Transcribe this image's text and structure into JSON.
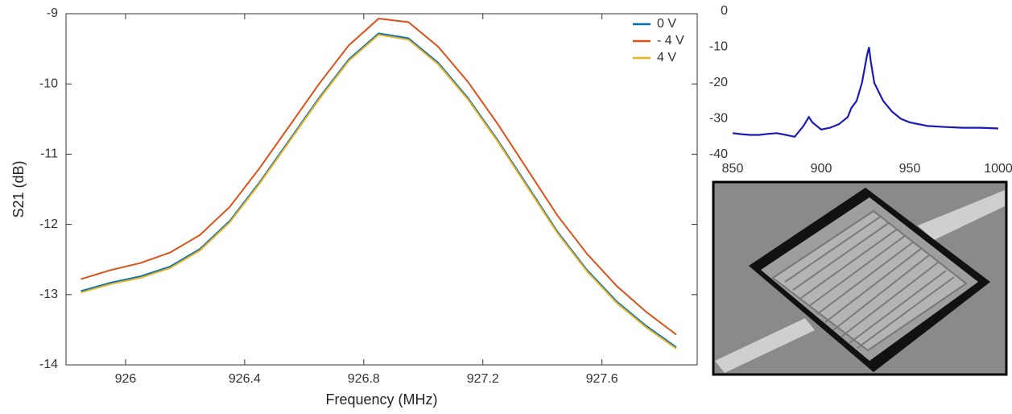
{
  "chart_data": [
    {
      "type": "line",
      "xlabel": "Frequency (MHz)",
      "ylabel": "S21 (dB)",
      "x": [
        925.85,
        925.95,
        926.05,
        926.15,
        926.25,
        926.35,
        926.45,
        926.55,
        926.65,
        926.75,
        926.85,
        926.95,
        927.05,
        927.15,
        927.25,
        927.35,
        927.45,
        927.55,
        927.65,
        927.75,
        927.85
      ],
      "series": [
        {
          "name": "0 V",
          "color": "#0072bd",
          "values": [
            -12.95,
            -12.83,
            -12.74,
            -12.6,
            -12.35,
            -11.95,
            -11.4,
            -10.8,
            -10.2,
            -9.65,
            -9.28,
            -9.35,
            -9.7,
            -10.2,
            -10.8,
            -11.45,
            -12.1,
            -12.65,
            -13.1,
            -13.45,
            -13.75
          ]
        },
        {
          "name": "- 4 V",
          "color": "#d95319",
          "values": [
            -12.78,
            -12.65,
            -12.55,
            -12.4,
            -12.15,
            -11.75,
            -11.2,
            -10.6,
            -10.0,
            -9.45,
            -9.07,
            -9.12,
            -9.47,
            -9.97,
            -10.57,
            -11.22,
            -11.87,
            -12.42,
            -12.88,
            -13.25,
            -13.57
          ]
        },
        {
          "name": "4 V",
          "color": "#edb120",
          "values": [
            -12.97,
            -12.85,
            -12.76,
            -12.62,
            -12.37,
            -11.97,
            -11.42,
            -10.82,
            -10.22,
            -9.67,
            -9.3,
            -9.37,
            -9.72,
            -10.22,
            -10.82,
            -11.47,
            -12.12,
            -12.67,
            -13.12,
            -13.47,
            -13.77
          ]
        }
      ],
      "xlim": [
        925.8,
        927.92
      ],
      "ylim": [
        -14,
        -9
      ],
      "xticks": [
        926,
        926.4,
        926.8,
        927.2,
        927.6
      ],
      "yticks": [
        -14,
        -13,
        -12,
        -11,
        -10,
        -9
      ],
      "legend": "top-right"
    },
    {
      "type": "line",
      "x": [
        850,
        855,
        860,
        865,
        870,
        875,
        880,
        885,
        890,
        893,
        895,
        900,
        905,
        910,
        915,
        917,
        920,
        923,
        926,
        927,
        928,
        930,
        935,
        940,
        945,
        950,
        960,
        970,
        980,
        990,
        1000
      ],
      "series": [
        {
          "color": "#1a1ab8",
          "values": [
            -34,
            -34.3,
            -34.5,
            -34.5,
            -34.2,
            -34,
            -34.5,
            -35,
            -32,
            -29.5,
            -31,
            -33,
            -32.5,
            -31.5,
            -29.5,
            -27,
            -25,
            -20,
            -12,
            -10,
            -14,
            -20,
            -25,
            -28,
            -30,
            -31,
            -32,
            -32.3,
            -32.5,
            -32.5,
            -32.7
          ]
        }
      ],
      "xlim": [
        850,
        1000
      ],
      "ylim": [
        -40,
        0
      ],
      "xticks": [
        850,
        900,
        950,
        1000
      ],
      "yticks": [
        -40,
        -30,
        -20,
        -10,
        0
      ]
    }
  ]
}
